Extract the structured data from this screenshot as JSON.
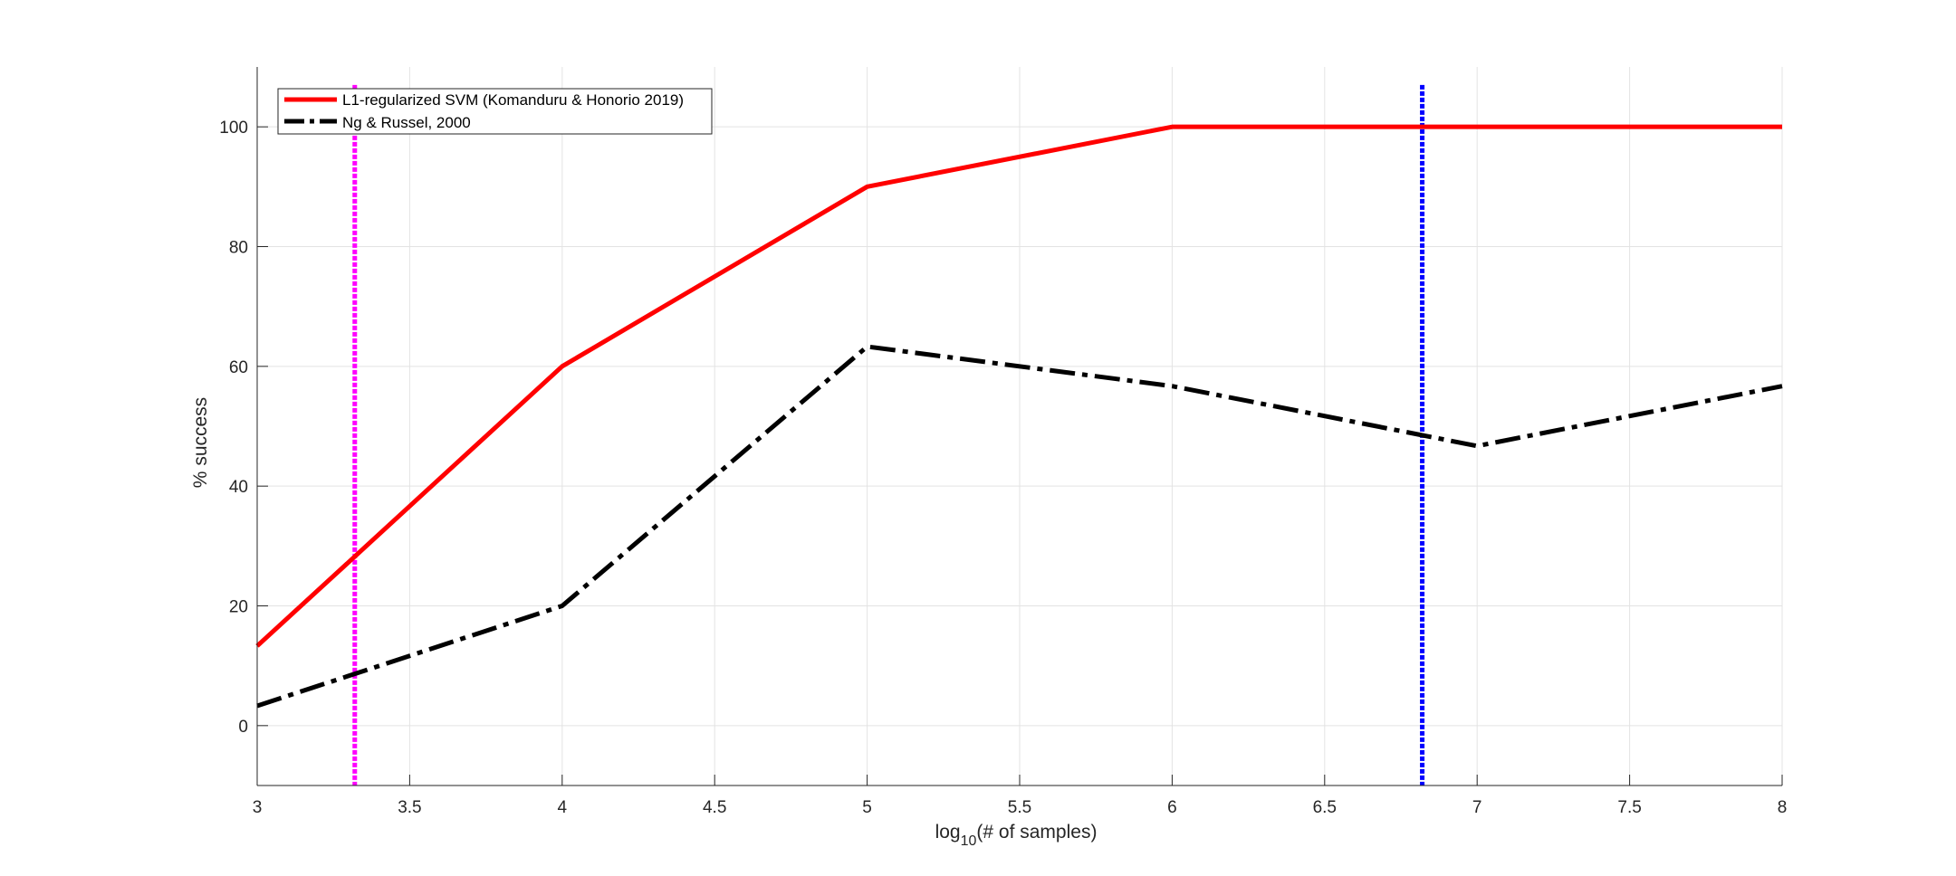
{
  "chart_data": {
    "type": "line",
    "xlabel": {
      "main": "log",
      "sub": "10",
      "rest": "(# of samples)"
    },
    "ylabel": "% success",
    "xlim": [
      3,
      8
    ],
    "ylim": [
      -10,
      110
    ],
    "xticks": [
      "3",
      "3.5",
      "4",
      "4.5",
      "5",
      "5.5",
      "6",
      "6.5",
      "7",
      "7.5",
      "8"
    ],
    "yticks": [
      "0",
      "20",
      "40",
      "60",
      "80",
      "100"
    ],
    "grid": true,
    "legend_position": "top-left",
    "series": [
      {
        "name": "L1-regularized SVM (Komanduru & Honorio 2019)",
        "color": "#ff0000",
        "style": "solid",
        "x": [
          3,
          4,
          5,
          6,
          7,
          8
        ],
        "y": [
          13.3,
          60,
          90,
          100,
          100,
          100
        ]
      },
      {
        "name": "Ng & Russel, 2000",
        "color": "#000000",
        "style": "dash-dot",
        "x": [
          3,
          4,
          5,
          6,
          7,
          8
        ],
        "y": [
          3.3,
          20,
          63.3,
          56.7,
          46.7,
          56.7
        ]
      }
    ],
    "vertical_lines": [
      {
        "x": 3.32,
        "color": "#ff00ff",
        "style": "dotted"
      },
      {
        "x": 6.82,
        "color": "#0000ff",
        "style": "dotted"
      }
    ]
  }
}
